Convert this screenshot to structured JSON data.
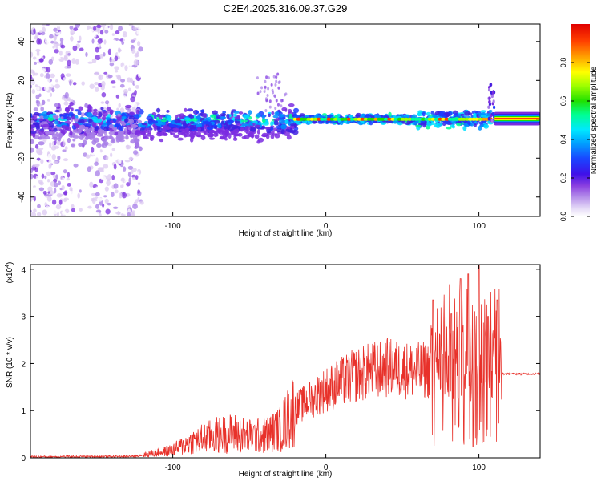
{
  "title": "C2E4.2025.316.09.37.G29",
  "chart_data": [
    {
      "type": "heatmap",
      "name": "spectrogram",
      "xlabel": "Height of straight line (km)",
      "ylabel": "Frequency (Hz)",
      "xlim": [
        -193,
        140
      ],
      "ylim": [
        -50,
        49
      ],
      "xticks": [
        -100,
        0,
        100
      ],
      "yticks": [
        -40,
        -20,
        0,
        20,
        40
      ],
      "colorbar": {
        "label": "Normalized spectral amplitude",
        "range": [
          0.0,
          1.0
        ],
        "ticks": [
          0.0,
          0.2,
          0.4,
          0.6,
          0.8
        ],
        "tick_labels": [
          "0.0",
          "0.2",
          "0.4",
          "0.6",
          "0.8"
        ],
        "colors": [
          "#ffffff",
          "#dcc9f2",
          "#a77de8",
          "#7b2de0",
          "#4020e0",
          "#1e3cff",
          "#0090ff",
          "#00e0ff",
          "#00ff90",
          "#20e000",
          "#a0ff00",
          "#ffff00",
          "#ffa000",
          "#ff4000",
          "#e00000"
        ]
      },
      "features": {
        "scatter_region_km": [
          -193,
          -120
        ],
        "broad_band_region_km": [
          -160,
          -20
        ],
        "narrow_tone_region_km": [
          -20,
          108
        ],
        "pure_tone_region_km": [
          110,
          140
        ],
        "carrier_frequency_hz": 0
      }
    },
    {
      "type": "line",
      "name": "snr",
      "xlabel": "Height of straight line (km)",
      "ylabel": "SNR (10 * v/v)",
      "yscale_label": "(x10",
      "yscale_exp": "4",
      "yscale_close": ")",
      "xlim": [
        -193,
        140
      ],
      "ylim": [
        0,
        4.1
      ],
      "xticks": [
        -100,
        0,
        100
      ],
      "yticks": [
        0,
        1,
        2,
        3,
        4
      ],
      "color": "#e8312a",
      "envelope": {
        "x": [
          -193,
          -125,
          -115,
          -100,
          -90,
          -80,
          -70,
          -60,
          -50,
          -40,
          -30,
          -25,
          -20,
          -10,
          0,
          10,
          20,
          30,
          40,
          50,
          60,
          67
        ],
        "y": [
          0.02,
          0.03,
          0.08,
          0.15,
          0.28,
          0.38,
          0.45,
          0.48,
          0.42,
          0.43,
          0.55,
          0.75,
          1.0,
          1.2,
          1.4,
          1.55,
          1.7,
          1.78,
          1.85,
          1.8,
          1.78,
          1.8
        ]
      },
      "oscillation_region_km": [
        68,
        115
      ],
      "oscillation_peaks": [
        {
          "x": 70,
          "y": 3.35
        },
        {
          "x": 76,
          "y": 2.2
        },
        {
          "x": 82,
          "y": 3.05
        },
        {
          "x": 88,
          "y": 3.8
        },
        {
          "x": 93,
          "y": 3.9
        },
        {
          "x": 97,
          "y": 3.1
        },
        {
          "x": 100,
          "y": 4.1
        },
        {
          "x": 106,
          "y": 3.0
        },
        {
          "x": 112,
          "y": 3.35
        }
      ],
      "plateau_level": 1.78,
      "plateau_region_km": [
        115,
        140
      ]
    }
  ]
}
